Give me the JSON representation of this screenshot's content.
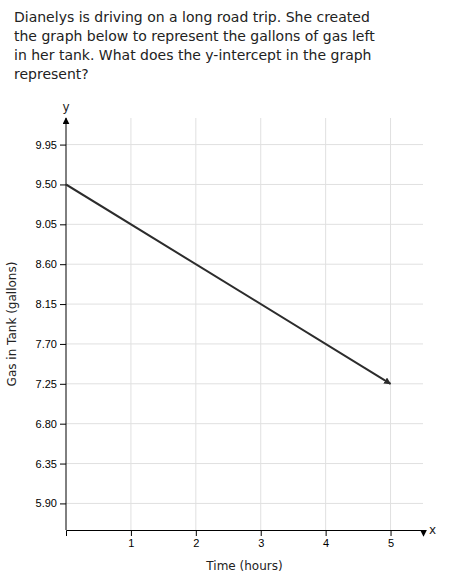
{
  "chart_data": {
    "type": "line",
    "title": "Dianelys is driving on a long road trip. She created\nthe graph below to represent the gallons of gas left\nin her tank. What does the y-intercept in the graph\nrepresent?",
    "x_label": "Time (hours)",
    "y_label": "Gas in Tank (gallons)",
    "x": [
      0,
      5
    ],
    "values": [
      9.5,
      7.25
    ],
    "color": "#2c2c2c",
    "marker": "arrow",
    "xlim": [
      0,
      5.5
    ],
    "ylim": [
      5.6,
      10.25
    ],
    "xticks": [
      1,
      2,
      3,
      4,
      5
    ],
    "yticks": [
      {
        "value": 5.9,
        "label": "5.90"
      },
      6.35,
      {
        "value": 6.8,
        "label": "6.80"
      },
      7.25,
      {
        "value": 7.7,
        "label": "7.70"
      },
      8.15,
      {
        "value": 8.6,
        "label": "8.60"
      },
      9.05,
      {
        "value": 9.5,
        "label": "9.50"
      },
      9.95
    ],
    "annotations": [
      "x",
      "y"
    ],
    "grid": true
  }
}
